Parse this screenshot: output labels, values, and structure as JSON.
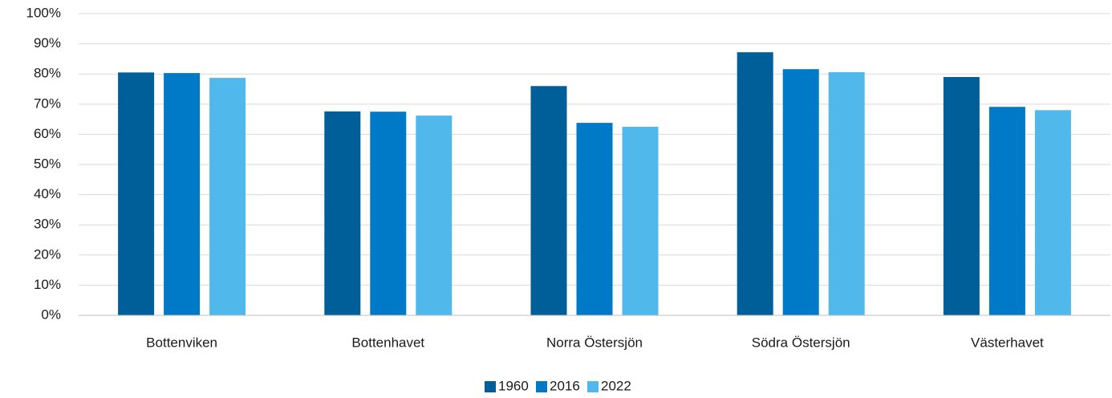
{
  "chart_data": {
    "type": "bar",
    "categories": [
      "Bottenviken",
      "Bottenhavet",
      "Norra Östersjön",
      "Södra Östersjön",
      "Västerhavet"
    ],
    "series": [
      {
        "name": "1960",
        "color": "#005f99",
        "values": [
          80.5,
          67.6,
          76,
          87.2,
          79
        ]
      },
      {
        "name": "2016",
        "color": "#007ac7",
        "values": [
          80.3,
          67.5,
          63.8,
          81.6,
          69.1
        ]
      },
      {
        "name": "2022",
        "color": "#50b8ea",
        "values": [
          78.7,
          66.2,
          62.5,
          80.6,
          68
        ]
      }
    ],
    "ylim": [
      0,
      100
    ],
    "yticks": [
      {
        "value": 0,
        "label": "0%"
      },
      {
        "value": 10,
        "label": "10%"
      },
      {
        "value": 20,
        "label": "20%"
      },
      {
        "value": 30,
        "label": "30%"
      },
      {
        "value": 40,
        "label": "40%"
      },
      {
        "value": 50,
        "label": "50%"
      },
      {
        "value": 60,
        "label": "60%"
      },
      {
        "value": 70,
        "label": "70%"
      },
      {
        "value": 80,
        "label": "80%"
      },
      {
        "value": 90,
        "label": "90%"
      },
      {
        "value": 100,
        "label": "100%"
      }
    ],
    "grid": true,
    "legend": "bottom"
  }
}
